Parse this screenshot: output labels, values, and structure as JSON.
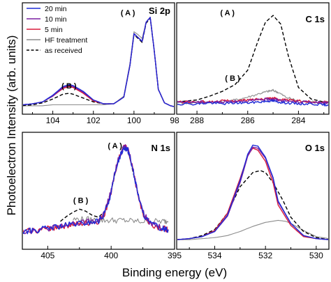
{
  "figure": {
    "xlabel": "Binding energy (eV)",
    "ylabel": "Photoelectron Intensity (arb. units)"
  },
  "legend": [
    {
      "name": "20 min",
      "color": "#1f2bd6",
      "style": "solid"
    },
    {
      "name": "10 min",
      "color": "#7a1fa2",
      "style": "solid"
    },
    {
      "name": "5 min",
      "color": "#d81b3c",
      "style": "solid"
    },
    {
      "name": "HF treatment",
      "color": "#8c8c8c",
      "style": "solid"
    },
    {
      "name": "as received",
      "color": "#000000",
      "style": "dashed"
    }
  ],
  "chart_data": [
    {
      "type": "line",
      "panel": "Si 2p",
      "title": "Si 2p",
      "xlim": [
        105.5,
        98
      ],
      "ylim": [
        0,
        1
      ],
      "xticks": [
        104,
        102,
        100,
        98
      ],
      "annotations": [
        {
          "text": "( A )",
          "x": 100.3,
          "y": 0.97
        },
        {
          "text": "( B )",
          "x": 103.2,
          "y": 0.21
        }
      ],
      "series": [
        {
          "name": "20 min",
          "x": [
            105.5,
            105,
            104.5,
            104,
            103.5,
            103.2,
            103,
            102.5,
            102,
            101.5,
            101,
            100.5,
            100.2,
            100,
            99.8,
            99.6,
            99.4,
            99.2,
            99,
            98.8,
            98.5,
            98.2,
            98
          ],
          "y": [
            0.04,
            0.05,
            0.07,
            0.14,
            0.23,
            0.25,
            0.24,
            0.18,
            0.09,
            0.05,
            0.05,
            0.12,
            0.45,
            0.78,
            0.74,
            0.7,
            0.9,
            0.95,
            0.6,
            0.2,
            0.06,
            0.03,
            0.02
          ]
        },
        {
          "name": "10 min",
          "x": [
            105.5,
            105,
            104.5,
            104,
            103.5,
            103.2,
            103,
            102.5,
            102,
            101.5,
            101,
            100.5,
            100.2,
            100,
            99.8,
            99.6,
            99.4,
            99.2,
            99,
            98.8,
            98.5,
            98.2,
            98
          ],
          "y": [
            0.04,
            0.05,
            0.07,
            0.13,
            0.22,
            0.24,
            0.23,
            0.17,
            0.09,
            0.05,
            0.05,
            0.12,
            0.45,
            0.78,
            0.74,
            0.7,
            0.9,
            0.95,
            0.6,
            0.2,
            0.06,
            0.03,
            0.02
          ]
        },
        {
          "name": "5 min",
          "x": [
            105.5,
            105,
            104.5,
            104,
            103.5,
            103.2,
            103,
            102.5,
            102,
            101.5,
            101,
            100.5,
            100.2,
            100,
            99.8,
            99.6,
            99.4,
            99.2,
            99,
            98.8,
            98.5,
            98.2,
            98
          ],
          "y": [
            0.04,
            0.05,
            0.07,
            0.13,
            0.21,
            0.23,
            0.22,
            0.16,
            0.08,
            0.05,
            0.05,
            0.12,
            0.45,
            0.78,
            0.74,
            0.7,
            0.9,
            0.95,
            0.6,
            0.2,
            0.06,
            0.03,
            0.02
          ]
        },
        {
          "name": "HF treatment",
          "x": [
            105.5,
            105,
            104.5,
            104,
            103.5,
            103.2,
            103,
            102.5,
            102,
            101.5,
            101,
            100.5,
            100.2,
            100,
            99.8,
            99.6,
            99.4,
            99.2,
            99,
            98.8,
            98.5,
            98.2,
            98
          ],
          "y": [
            0.03,
            0.03,
            0.03,
            0.04,
            0.04,
            0.04,
            0.04,
            0.04,
            0.04,
            0.04,
            0.05,
            0.13,
            0.47,
            0.8,
            0.77,
            0.73,
            0.9,
            0.95,
            0.6,
            0.2,
            0.06,
            0.03,
            0.02
          ]
        },
        {
          "name": "as received",
          "x": [
            105.5,
            105,
            104.5,
            104,
            103.5,
            103.2,
            103,
            102.5,
            102,
            101.5,
            101,
            100.5,
            100.2,
            100,
            99.8,
            99.6,
            99.4,
            99.2,
            99,
            98.8,
            98.5,
            98.2,
            98
          ],
          "y": [
            0.03,
            0.04,
            0.06,
            0.1,
            0.15,
            0.16,
            0.15,
            0.11,
            0.07,
            0.05,
            0.05,
            0.12,
            0.45,
            0.77,
            0.73,
            0.69,
            0.89,
            0.94,
            0.6,
            0.2,
            0.06,
            0.03,
            0.02
          ]
        }
      ]
    },
    {
      "type": "line",
      "panel": "C 1s",
      "title": "C 1s",
      "xlim": [
        288.8,
        282.8
      ],
      "ylim": [
        0,
        1
      ],
      "xticks": [
        288,
        286,
        284
      ],
      "annotations": [
        {
          "text": "( A )",
          "x": 286.8,
          "y": 0.97
        },
        {
          "text": "( B )",
          "x": 286.6,
          "y": 0.29
        }
      ],
      "series": [
        {
          "name": "20 min",
          "x": [
            288.8,
            288,
            287.5,
            287,
            286.5,
            286,
            285.5,
            285.2,
            285,
            284.8,
            284.5,
            284,
            283.5,
            283,
            282.8
          ],
          "y": [
            0.05,
            0.05,
            0.06,
            0.05,
            0.06,
            0.06,
            0.07,
            0.08,
            0.08,
            0.07,
            0.06,
            0.05,
            0.05,
            0.04,
            0.04
          ]
        },
        {
          "name": "10 min",
          "x": [
            288.8,
            288,
            287.5,
            287,
            286.5,
            286,
            285.5,
            285.2,
            285,
            284.8,
            284.5,
            284,
            283.5,
            283,
            282.8
          ],
          "y": [
            0.07,
            0.07,
            0.07,
            0.07,
            0.08,
            0.08,
            0.09,
            0.1,
            0.1,
            0.09,
            0.08,
            0.07,
            0.07,
            0.06,
            0.06
          ]
        },
        {
          "name": "5 min",
          "x": [
            288.8,
            288,
            287.5,
            287,
            286.5,
            286,
            285.5,
            285.2,
            285,
            284.8,
            284.5,
            284,
            283.5,
            283,
            282.8
          ],
          "y": [
            0.07,
            0.07,
            0.07,
            0.08,
            0.08,
            0.09,
            0.1,
            0.11,
            0.11,
            0.1,
            0.09,
            0.08,
            0.07,
            0.07,
            0.07
          ]
        },
        {
          "name": "HF treatment",
          "x": [
            288.8,
            288,
            287.5,
            287,
            286.5,
            286,
            285.5,
            285.2,
            285,
            284.8,
            284.5,
            284,
            283.5,
            283,
            282.8
          ],
          "y": [
            0.06,
            0.06,
            0.07,
            0.07,
            0.09,
            0.12,
            0.16,
            0.18,
            0.19,
            0.17,
            0.12,
            0.08,
            0.07,
            0.06,
            0.06
          ]
        },
        {
          "name": "as received",
          "x": [
            288.8,
            288,
            287.5,
            287,
            286.5,
            286,
            285.6,
            285.3,
            285,
            284.7,
            284.4,
            284,
            283.5,
            283,
            282.8
          ],
          "y": [
            0.07,
            0.09,
            0.13,
            0.18,
            0.25,
            0.4,
            0.7,
            0.9,
            0.97,
            0.88,
            0.55,
            0.22,
            0.1,
            0.07,
            0.07
          ]
        }
      ]
    },
    {
      "type": "line",
      "panel": "N 1s",
      "title": "N 1s",
      "xlim": [
        407,
        395
      ],
      "ylim": [
        0,
        1
      ],
      "xticks": [
        405,
        400,
        395
      ],
      "annotations": [
        {
          "text": "( A )",
          "x": 399.7,
          "y": 0.94
        },
        {
          "text": "( B )",
          "x": 402.4,
          "y": 0.4
        }
      ],
      "series": [
        {
          "name": "20 min",
          "x": [
            407,
            406,
            405,
            404,
            403,
            402,
            401,
            400.5,
            400,
            399.5,
            399,
            398.7,
            398.5,
            398,
            397.5,
            397,
            396,
            395.5
          ],
          "y": [
            0.12,
            0.13,
            0.15,
            0.17,
            0.19,
            0.2,
            0.22,
            0.3,
            0.5,
            0.8,
            0.95,
            0.93,
            0.85,
            0.55,
            0.3,
            0.2,
            0.15,
            0.14
          ]
        },
        {
          "name": "10 min",
          "x": [
            407,
            406,
            405,
            404,
            403,
            402,
            401,
            400.5,
            400,
            399.5,
            399,
            398.7,
            398.5,
            398,
            397.5,
            397,
            396,
            395.5
          ],
          "y": [
            0.12,
            0.13,
            0.15,
            0.17,
            0.19,
            0.21,
            0.23,
            0.31,
            0.52,
            0.82,
            0.96,
            0.94,
            0.86,
            0.56,
            0.31,
            0.21,
            0.16,
            0.14
          ]
        },
        {
          "name": "5 min",
          "x": [
            407,
            406,
            405,
            404,
            403,
            402,
            401,
            400.5,
            400,
            399.5,
            399,
            398.7,
            398.5,
            398,
            397.5,
            397,
            396,
            395.5
          ],
          "y": [
            0.12,
            0.13,
            0.15,
            0.17,
            0.19,
            0.2,
            0.22,
            0.3,
            0.5,
            0.8,
            0.95,
            0.93,
            0.85,
            0.55,
            0.3,
            0.2,
            0.15,
            0.14
          ]
        },
        {
          "name": "HF treatment",
          "x": [
            403,
            402,
            401,
            400,
            399,
            398,
            397,
            396,
            395.5
          ],
          "y": [
            0.24,
            0.24,
            0.23,
            0.23,
            0.23,
            0.22,
            0.22,
            0.22,
            0.22
          ]
        },
        {
          "name": "as received",
          "x": [
            404,
            403.5,
            403,
            402.5,
            402,
            401.5,
            401,
            400.5,
            400,
            399.5,
            399,
            398.7,
            398.5,
            398,
            397.5,
            397
          ],
          "y": [
            0.22,
            0.27,
            0.31,
            0.34,
            0.32,
            0.28,
            0.26,
            0.32,
            0.52,
            0.8,
            0.93,
            0.91,
            0.83,
            0.55,
            0.3,
            0.22
          ]
        }
      ]
    },
    {
      "type": "line",
      "panel": "O 1s",
      "title": "O 1s",
      "xlim": [
        535.5,
        529.5
      ],
      "ylim": [
        0,
        1
      ],
      "xticks": [
        534,
        532,
        530
      ],
      "annotations": [],
      "series": [
        {
          "name": "20 min",
          "x": [
            535.5,
            535,
            534.5,
            534,
            533.5,
            533,
            532.7,
            532.5,
            532.3,
            532,
            531.7,
            531.5,
            531,
            530.5,
            530,
            529.5
          ],
          "y": [
            0.04,
            0.05,
            0.07,
            0.12,
            0.28,
            0.62,
            0.88,
            0.97,
            0.96,
            0.85,
            0.65,
            0.42,
            0.2,
            0.08,
            0.05,
            0.04
          ]
        },
        {
          "name": "10 min",
          "x": [
            535.5,
            535,
            534.5,
            534,
            533.5,
            533,
            532.7,
            532.5,
            532.3,
            532,
            531.7,
            531.5,
            531,
            530.5,
            530,
            529.5
          ],
          "y": [
            0.04,
            0.05,
            0.07,
            0.12,
            0.27,
            0.6,
            0.86,
            0.95,
            0.94,
            0.84,
            0.64,
            0.41,
            0.2,
            0.08,
            0.05,
            0.04
          ]
        },
        {
          "name": "5 min",
          "x": [
            535.5,
            535,
            534.5,
            534,
            533.5,
            533,
            532.7,
            532.5,
            532.3,
            532,
            531.7,
            531.5,
            531,
            530.5,
            530,
            529.5
          ],
          "y": [
            0.04,
            0.05,
            0.07,
            0.13,
            0.3,
            0.64,
            0.87,
            0.94,
            0.92,
            0.81,
            0.6,
            0.38,
            0.18,
            0.07,
            0.05,
            0.04
          ]
        },
        {
          "name": "HF treatment",
          "x": [
            535.5,
            535,
            534.5,
            534,
            533.5,
            533,
            532.5,
            532,
            531.5,
            531.2,
            531,
            530.5,
            530,
            529.5
          ],
          "y": [
            0.04,
            0.04,
            0.05,
            0.06,
            0.08,
            0.12,
            0.17,
            0.21,
            0.23,
            0.22,
            0.2,
            0.13,
            0.07,
            0.05
          ]
        },
        {
          "name": "as received",
          "x": [
            535.5,
            535,
            534.5,
            534,
            533.5,
            533,
            532.5,
            532.2,
            532,
            531.7,
            531.3,
            531,
            530.5,
            530,
            529.5
          ],
          "y": [
            0.04,
            0.05,
            0.08,
            0.14,
            0.3,
            0.56,
            0.7,
            0.72,
            0.7,
            0.6,
            0.42,
            0.26,
            0.12,
            0.06,
            0.04
          ]
        }
      ]
    }
  ]
}
